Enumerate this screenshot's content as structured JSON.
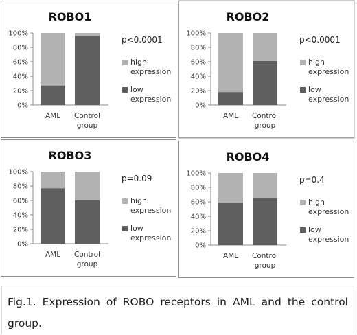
{
  "chart_data": [
    {
      "type": "bar",
      "stacked": true,
      "title": "ROBO1",
      "categories": [
        "AML",
        "Control group"
      ],
      "y_ticks": [
        "0%",
        "20%",
        "40%",
        "60%",
        "80%",
        "100%"
      ],
      "ylim": [
        0,
        100
      ],
      "annotation": "p<0.0001",
      "legend_position": "right",
      "series": [
        {
          "name": "low expression",
          "values": [
            27,
            96
          ]
        },
        {
          "name": "high expression",
          "values": [
            73,
            4
          ]
        }
      ]
    },
    {
      "type": "bar",
      "stacked": true,
      "title": "ROBO2",
      "categories": [
        "AML",
        "Control group"
      ],
      "y_ticks": [
        "0%",
        "20%",
        "40%",
        "60%",
        "80%",
        "100%"
      ],
      "ylim": [
        0,
        100
      ],
      "annotation": "p<0.0001",
      "legend_position": "right",
      "series": [
        {
          "name": "low expression",
          "values": [
            18,
            61
          ]
        },
        {
          "name": "high expression",
          "values": [
            82,
            39
          ]
        }
      ]
    },
    {
      "type": "bar",
      "stacked": true,
      "title": "ROBO3",
      "categories": [
        "AML",
        "Control group"
      ],
      "y_ticks": [
        "0%",
        "20%",
        "40%",
        "60%",
        "80%",
        "100%"
      ],
      "ylim": [
        0,
        100
      ],
      "annotation": "p=0.09",
      "legend_position": "right",
      "series": [
        {
          "name": "low expression",
          "values": [
            77,
            60
          ]
        },
        {
          "name": "high expression",
          "values": [
            23,
            40
          ]
        }
      ]
    },
    {
      "type": "bar",
      "stacked": true,
      "title": "ROBO4",
      "categories": [
        "AML",
        "Control group"
      ],
      "y_ticks": [
        "0%",
        "20%",
        "40%",
        "60%",
        "80%",
        "100%"
      ],
      "ylim": [
        0,
        100
      ],
      "annotation": "p=0.4",
      "legend_position": "right",
      "series": [
        {
          "name": "low expression",
          "values": [
            59,
            65
          ]
        },
        {
          "name": "high expression",
          "values": [
            41,
            35
          ]
        }
      ]
    }
  ],
  "colors": {
    "low": "#5f5f5f",
    "high": "#b2b2b2",
    "axis": "#8c8c8c"
  },
  "caption": "Fig.1. Expression of ROBO receptors in AML and the control group."
}
